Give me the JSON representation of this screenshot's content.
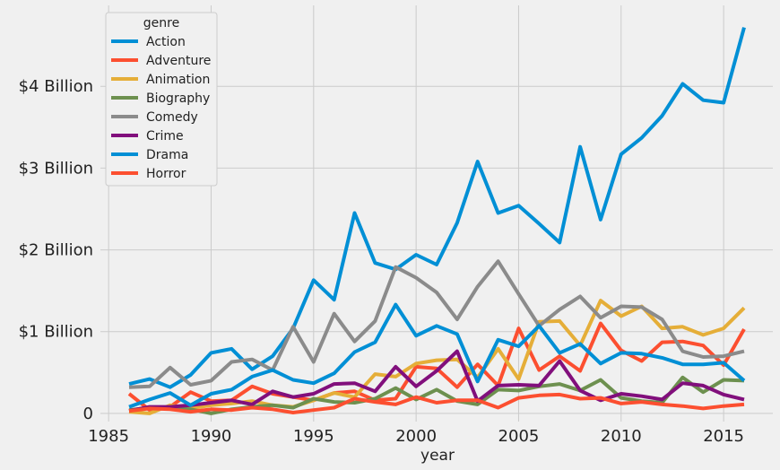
{
  "chart_data": {
    "type": "line",
    "xlabel": "year",
    "ylabel": "",
    "xlim": [
      1984.6,
      2017.4
    ],
    "ylim": [
      -0.1,
      4.99
    ],
    "x_ticks": [
      1985,
      1990,
      1995,
      2000,
      2005,
      2010,
      2015
    ],
    "x_tick_labels": [
      "1985",
      "1990",
      "1995",
      "2000",
      "2005",
      "2010",
      "2015"
    ],
    "y_ticks": [
      0,
      1,
      2,
      3,
      4
    ],
    "y_tick_labels": [
      "0",
      "$1 Billion",
      "$2 Billion",
      "$3 Billion",
      "$4 Billion"
    ],
    "grid": true,
    "legend": {
      "title": "genre",
      "placement": "top-left"
    },
    "x": [
      1986,
      1987,
      1988,
      1989,
      1990,
      1991,
      1992,
      1993,
      1994,
      1995,
      1996,
      1997,
      1998,
      1999,
      2000,
      2001,
      2002,
      2003,
      2004,
      2005,
      2006,
      2007,
      2008,
      2009,
      2010,
      2011,
      2012,
      2013,
      2014,
      2015,
      2016
    ],
    "series": [
      {
        "name": "Action",
        "color": "#008fd5",
        "values": [
          0.36,
          0.42,
          0.32,
          0.47,
          0.74,
          0.79,
          0.54,
          0.7,
          1.04,
          1.63,
          1.39,
          2.45,
          1.84,
          1.76,
          1.94,
          1.82,
          2.33,
          3.08,
          2.45,
          2.54,
          2.32,
          2.09,
          3.26,
          2.37,
          3.17,
          3.37,
          3.64,
          4.03,
          3.83,
          3.8,
          4.72
        ]
      },
      {
        "name": "Adventure",
        "color": "#fc4f30",
        "values": [
          0.24,
          0.04,
          0.08,
          0.26,
          0.15,
          0.16,
          0.33,
          0.24,
          0.2,
          0.16,
          0.25,
          0.27,
          0.16,
          0.18,
          0.57,
          0.55,
          0.32,
          0.6,
          0.34,
          1.04,
          0.53,
          0.7,
          0.52,
          1.1,
          0.77,
          0.64,
          0.87,
          0.88,
          0.83,
          0.59,
          1.03
        ]
      },
      {
        "name": "Animation",
        "color": "#e5ae38",
        "values": [
          0.02,
          0.0,
          0.1,
          0.06,
          0.1,
          0.12,
          0.15,
          0.1,
          0.08,
          0.16,
          0.25,
          0.2,
          0.48,
          0.45,
          0.61,
          0.65,
          0.66,
          0.44,
          0.79,
          0.42,
          1.12,
          1.13,
          0.83,
          1.38,
          1.19,
          1.31,
          1.04,
          1.06,
          0.96,
          1.04,
          1.29
        ]
      },
      {
        "name": "Biography",
        "color": "#6d904f",
        "values": [
          0.04,
          0.07,
          0.06,
          0.05,
          0.0,
          0.05,
          0.08,
          0.1,
          0.07,
          0.18,
          0.14,
          0.13,
          0.18,
          0.31,
          0.17,
          0.29,
          0.15,
          0.11,
          0.29,
          0.28,
          0.33,
          0.36,
          0.28,
          0.41,
          0.19,
          0.15,
          0.13,
          0.44,
          0.26,
          0.41,
          0.4
        ]
      },
      {
        "name": "Comedy",
        "color": "#8b8b8b",
        "values": [
          0.32,
          0.33,
          0.56,
          0.35,
          0.4,
          0.63,
          0.66,
          0.53,
          1.06,
          0.63,
          1.22,
          0.88,
          1.13,
          1.79,
          1.66,
          1.48,
          1.15,
          1.55,
          1.86,
          1.46,
          1.07,
          1.27,
          1.43,
          1.17,
          1.31,
          1.3,
          1.15,
          0.76,
          0.69,
          0.7,
          0.76
        ]
      },
      {
        "name": "Crime",
        "color": "#810f7c",
        "values": [
          0.03,
          0.08,
          0.08,
          0.1,
          0.13,
          0.16,
          0.11,
          0.27,
          0.2,
          0.24,
          0.36,
          0.37,
          0.27,
          0.57,
          0.33,
          0.52,
          0.76,
          0.15,
          0.34,
          0.35,
          0.34,
          0.64,
          0.28,
          0.16,
          0.24,
          0.21,
          0.17,
          0.37,
          0.34,
          0.23,
          0.17
        ]
      },
      {
        "name": "Drama",
        "color": "#008fd5",
        "values": [
          0.08,
          0.17,
          0.25,
          0.1,
          0.24,
          0.29,
          0.45,
          0.53,
          0.41,
          0.37,
          0.49,
          0.75,
          0.87,
          1.33,
          0.95,
          1.07,
          0.97,
          0.39,
          0.9,
          0.82,
          1.07,
          0.74,
          0.85,
          0.61,
          0.74,
          0.73,
          0.68,
          0.6,
          0.6,
          0.62,
          0.4
        ]
      },
      {
        "name": "Horror",
        "color": "#fc4f30",
        "values": [
          0.03,
          0.06,
          0.05,
          0.02,
          0.05,
          0.04,
          0.07,
          0.05,
          0.01,
          0.04,
          0.07,
          0.18,
          0.14,
          0.11,
          0.2,
          0.13,
          0.16,
          0.16,
          0.07,
          0.19,
          0.22,
          0.23,
          0.18,
          0.19,
          0.12,
          0.14,
          0.11,
          0.09,
          0.06,
          0.09,
          0.11
        ]
      }
    ]
  }
}
